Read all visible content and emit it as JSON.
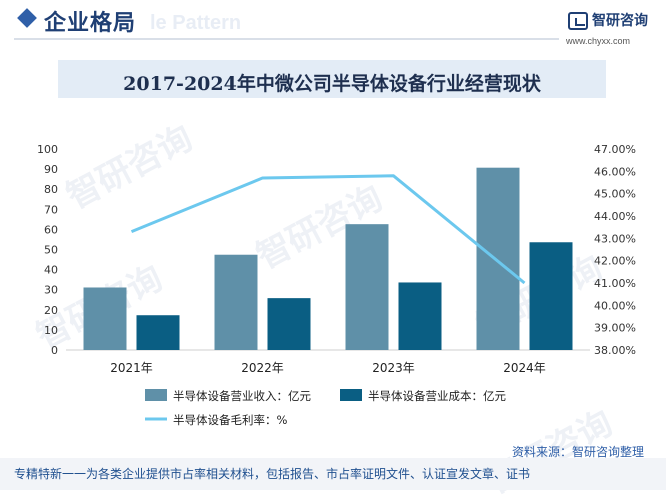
{
  "header": {
    "section_title": "企业格局",
    "ghost_text": "le Pattern",
    "brand_name": "智研咨询",
    "brand_url": "www.chyxx.com"
  },
  "banner_title": "2017-2024年中微公司半导体设备行业经营现状",
  "watermark_text": "智研咨询",
  "source_label": "资料来源：智研咨询整理",
  "footer_text": "专精特新一一为各类企业提供市占率相关材料，包括报告、市占率证明文件、认证宣发文章、证书",
  "chart_data": {
    "type": "bar",
    "categories": [
      "2021年",
      "2022年",
      "2023年",
      "2024年"
    ],
    "series": [
      {
        "name": "半导体设备营业收入：亿元",
        "type": "bar",
        "axis": "left",
        "color": "#5f90a8",
        "values": [
          31.1,
          47.4,
          62.6,
          90.7
        ]
      },
      {
        "name": "半导体设备营业成本：亿元",
        "type": "bar",
        "axis": "left",
        "color": "#0a5e83",
        "values": [
          17.3,
          25.8,
          33.6,
          53.6
        ]
      },
      {
        "name": "半导体设备毛利率：%",
        "type": "line",
        "axis": "right",
        "color": "#6cc8ee",
        "values": [
          43.3,
          45.7,
          45.8,
          41.0
        ]
      }
    ],
    "y_left": {
      "range": [
        0,
        100
      ],
      "ticks": [
        0,
        10,
        20,
        30,
        40,
        50,
        60,
        70,
        80,
        90,
        100
      ]
    },
    "y_right": {
      "range": [
        38,
        47
      ],
      "ticks": [
        "38.00%",
        "39.00%",
        "40.00%",
        "41.00%",
        "42.00%",
        "43.00%",
        "44.00%",
        "45.00%",
        "46.00%",
        "47.00%"
      ]
    },
    "grid": false,
    "legend_position": "bottom"
  }
}
